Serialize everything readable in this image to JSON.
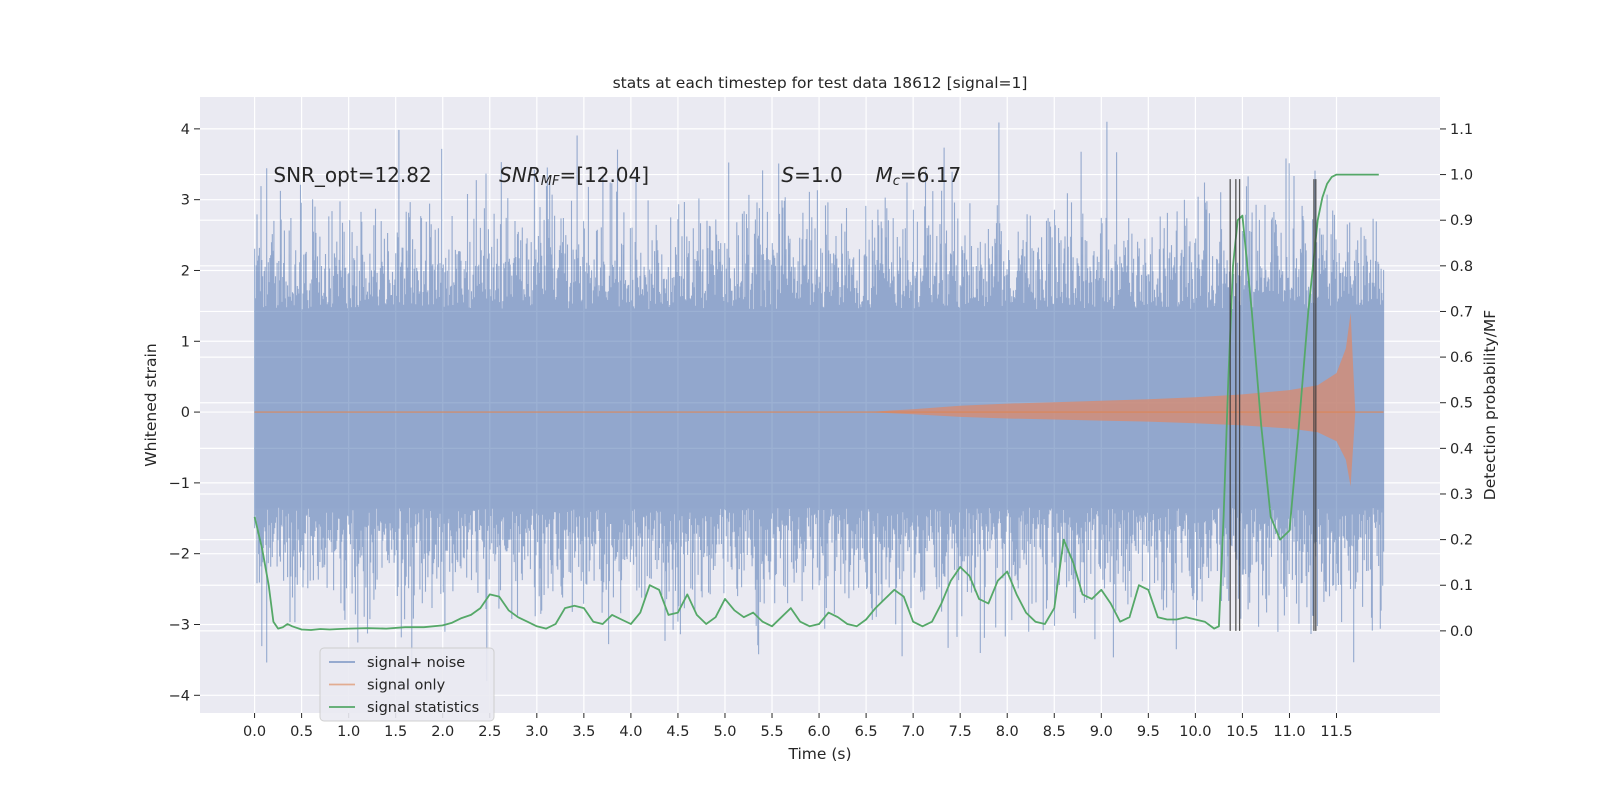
{
  "chart_data": {
    "type": "line",
    "title": "stats at each timestep for test data 18612 [signal=1]",
    "xlabel": "Time (s)",
    "ylabel_left": "Whitened strain",
    "ylabel_right": "Detection probability/MF",
    "xlim": [
      -0.58,
      12.6
    ],
    "ylim_left": [
      -4.25,
      4.45
    ],
    "ylim_right": [
      -0.18,
      1.17
    ],
    "x_ticks": [
      0.0,
      0.5,
      1.0,
      1.5,
      2.0,
      2.5,
      3.0,
      3.5,
      4.0,
      4.5,
      5.0,
      5.5,
      6.0,
      6.5,
      7.0,
      7.5,
      8.0,
      8.5,
      9.0,
      9.5,
      10.0,
      10.5,
      11.0,
      11.5
    ],
    "x_tick_labels": [
      "0.0",
      "0.5",
      "1.0",
      "1.5",
      "2.0",
      "2.5",
      "3.0",
      "3.5",
      "4.0",
      "4.5",
      "5.0",
      "5.5",
      "6.0",
      "6.5",
      "7.0",
      "7.5",
      "8.0",
      "8.5",
      "9.0",
      "9.5",
      "10.0",
      "10.5",
      "11.0",
      "11.5"
    ],
    "y_left_ticks": [
      4,
      3,
      2,
      1,
      0,
      -1,
      -2,
      -3,
      -4
    ],
    "y_left_tick_labels": [
      "4",
      "3",
      "2",
      "1",
      "0",
      "−1",
      "−2",
      "−3",
      "−4"
    ],
    "y_right_ticks": [
      1.1,
      1.0,
      0.9,
      0.8,
      0.7,
      0.6,
      0.5,
      0.4,
      0.3,
      0.2,
      0.1,
      0.0
    ],
    "y_right_tick_labels": [
      "1.1",
      "1.0",
      "0.9",
      "0.8",
      "0.7",
      "0.6",
      "0.5",
      "0.4",
      "0.3",
      "0.2",
      "0.1",
      "0.0"
    ],
    "grid": true,
    "legend_position": "bottom-left",
    "annotations": [
      {
        "parts": [
          {
            "t": "SNR_opt=12.82",
            "i": false
          }
        ],
        "x": 0.2,
        "y": 3.35
      },
      {
        "parts": [
          {
            "t": "SNR",
            "i": true
          },
          {
            "t": "MF",
            "i": true,
            "sub": true
          },
          {
            "t": "=[12.04]",
            "i": false
          }
        ],
        "x": 2.6,
        "y": 3.35
      },
      {
        "parts": [
          {
            "t": "S",
            "i": true
          },
          {
            "t": "=1.0",
            "i": false
          }
        ],
        "x": 5.6,
        "y": 3.35
      },
      {
        "parts": [
          {
            "t": "M",
            "i": true
          },
          {
            "t": "c",
            "i": true,
            "sub": true
          },
          {
            "t": "=6.17",
            "i": false
          }
        ],
        "x": 6.6,
        "y": 3.35
      }
    ],
    "series": [
      {
        "name": "signal+ noise",
        "color": "#4c72b0",
        "axis": "left",
        "style": "noise-band",
        "x_range": [
          0.0,
          12.0
        ],
        "core_band": [
          -1.2,
          1.4
        ],
        "spike_max": 4.1,
        "spike_min": -3.8
      },
      {
        "name": "signal only",
        "color": "#dd8452",
        "axis": "left",
        "style": "chirp",
        "x": [
          0.0,
          6.5,
          7.0,
          7.5,
          8.0,
          8.5,
          9.0,
          9.5,
          10.0,
          10.5,
          11.0,
          11.3,
          11.5,
          11.6,
          11.65,
          11.7
        ],
        "amplitude": [
          0.0,
          0.0,
          0.04,
          0.09,
          0.12,
          0.14,
          0.16,
          0.18,
          0.21,
          0.25,
          0.31,
          0.38,
          0.55,
          0.9,
          1.4,
          0.0
        ],
        "tail_x": [
          11.7,
          12.0
        ]
      },
      {
        "name": "signal statistics",
        "color": "#55a868",
        "axis": "right",
        "style": "line",
        "x": [
          0.0,
          0.08,
          0.15,
          0.2,
          0.25,
          0.3,
          0.35,
          0.4,
          0.5,
          0.6,
          0.7,
          0.8,
          0.9,
          1.0,
          1.2,
          1.4,
          1.6,
          1.8,
          2.0,
          2.1,
          2.2,
          2.3,
          2.4,
          2.5,
          2.6,
          2.7,
          2.8,
          2.9,
          3.0,
          3.1,
          3.2,
          3.3,
          3.4,
          3.5,
          3.6,
          3.7,
          3.8,
          3.9,
          4.0,
          4.1,
          4.2,
          4.3,
          4.4,
          4.5,
          4.6,
          4.7,
          4.8,
          4.9,
          5.0,
          5.1,
          5.2,
          5.3,
          5.4,
          5.5,
          5.6,
          5.7,
          5.8,
          5.9,
          6.0,
          6.1,
          6.2,
          6.3,
          6.4,
          6.5,
          6.6,
          6.7,
          6.8,
          6.9,
          7.0,
          7.1,
          7.2,
          7.3,
          7.4,
          7.5,
          7.6,
          7.7,
          7.8,
          7.9,
          8.0,
          8.1,
          8.2,
          8.3,
          8.4,
          8.5,
          8.6,
          8.7,
          8.8,
          8.9,
          9.0,
          9.1,
          9.2,
          9.3,
          9.4,
          9.5,
          9.6,
          9.7,
          9.8,
          9.9,
          10.0,
          10.1,
          10.2,
          10.25,
          10.3,
          10.35,
          10.4,
          10.45,
          10.5,
          10.6,
          10.7,
          10.8,
          10.9,
          11.0,
          11.1,
          11.2,
          11.3,
          11.35,
          11.4,
          11.45,
          11.5,
          11.6,
          11.7,
          11.8,
          11.9,
          11.95
        ],
        "y": [
          0.25,
          0.18,
          0.1,
          0.02,
          0.005,
          0.008,
          0.015,
          0.01,
          0.003,
          0.002,
          0.004,
          0.003,
          0.004,
          0.005,
          0.006,
          0.005,
          0.008,
          0.008,
          0.012,
          0.018,
          0.028,
          0.035,
          0.05,
          0.08,
          0.075,
          0.045,
          0.03,
          0.02,
          0.01,
          0.005,
          0.015,
          0.05,
          0.055,
          0.05,
          0.02,
          0.015,
          0.035,
          0.025,
          0.015,
          0.04,
          0.1,
          0.09,
          0.035,
          0.04,
          0.08,
          0.035,
          0.015,
          0.03,
          0.07,
          0.045,
          0.03,
          0.04,
          0.02,
          0.01,
          0.03,
          0.05,
          0.02,
          0.01,
          0.015,
          0.04,
          0.03,
          0.015,
          0.01,
          0.025,
          0.05,
          0.07,
          0.09,
          0.075,
          0.02,
          0.01,
          0.02,
          0.06,
          0.11,
          0.14,
          0.12,
          0.07,
          0.06,
          0.11,
          0.13,
          0.08,
          0.04,
          0.02,
          0.015,
          0.05,
          0.2,
          0.15,
          0.08,
          0.07,
          0.09,
          0.06,
          0.02,
          0.03,
          0.1,
          0.09,
          0.03,
          0.025,
          0.025,
          0.03,
          0.025,
          0.02,
          0.005,
          0.01,
          0.25,
          0.55,
          0.8,
          0.9,
          0.91,
          0.7,
          0.45,
          0.25,
          0.2,
          0.22,
          0.45,
          0.7,
          0.9,
          0.95,
          0.98,
          0.995,
          1.0,
          1.0,
          1.0,
          1.0,
          1.0,
          1.0
        ]
      }
    ],
    "vertical_markers": [
      {
        "x": 10.37,
        "y": [
          0.0,
          0.99
        ]
      },
      {
        "x": 10.43,
        "y": [
          0.0,
          0.99
        ]
      },
      {
        "x": 10.47,
        "y": [
          0.0,
          0.99
        ]
      },
      {
        "x": 11.26,
        "y": [
          0.0,
          0.99
        ]
      },
      {
        "x": 11.28,
        "y": [
          0.0,
          0.99
        ]
      }
    ]
  }
}
